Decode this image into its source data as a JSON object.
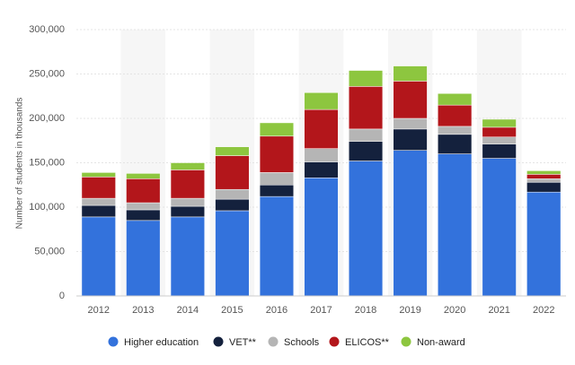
{
  "chart_data": {
    "type": "stacked_bar",
    "y_label": "Number of students in thousands",
    "categories": [
      "2012",
      "2013",
      "2014",
      "2015",
      "2016",
      "2017",
      "2018",
      "2019",
      "2020",
      "2021",
      "2022"
    ],
    "series": [
      {
        "name": "Higher education",
        "color": "#3372dc",
        "values": [
          89000,
          85000,
          89000,
          96000,
          112000,
          133000,
          152000,
          164000,
          160000,
          155000,
          117000
        ]
      },
      {
        "name": "VET**",
        "color": "#14213d",
        "values": [
          13000,
          12000,
          12000,
          13000,
          13000,
          18000,
          22000,
          24000,
          22000,
          16000,
          11000
        ]
      },
      {
        "name": "Schools",
        "color": "#b5b5b5",
        "values": [
          8000,
          8000,
          9000,
          11000,
          14000,
          15000,
          14000,
          12000,
          9000,
          8000,
          4000
        ]
      },
      {
        "name": "ELICOS**",
        "color": "#b3161b",
        "values": [
          24000,
          27000,
          32000,
          38000,
          41000,
          44000,
          48000,
          42000,
          24000,
          11000,
          5000
        ]
      },
      {
        "name": "Non-award",
        "color": "#8dc63f",
        "values": [
          5000,
          6000,
          8000,
          10000,
          15000,
          19000,
          18000,
          17000,
          13000,
          9000,
          4000
        ]
      }
    ],
    "ylim": [
      0,
      300000
    ],
    "yticks": [
      0,
      {
        "value": 50000,
        "label": "50,000"
      },
      {
        "value": 100000,
        "label": "100,000"
      },
      {
        "value": 150000,
        "label": "150,000"
      },
      {
        "value": 200000,
        "label": "200,000"
      },
      {
        "value": 250000,
        "label": "250,000"
      },
      {
        "value": 300000,
        "label": "300,000"
      }
    ],
    "grid": true
  }
}
